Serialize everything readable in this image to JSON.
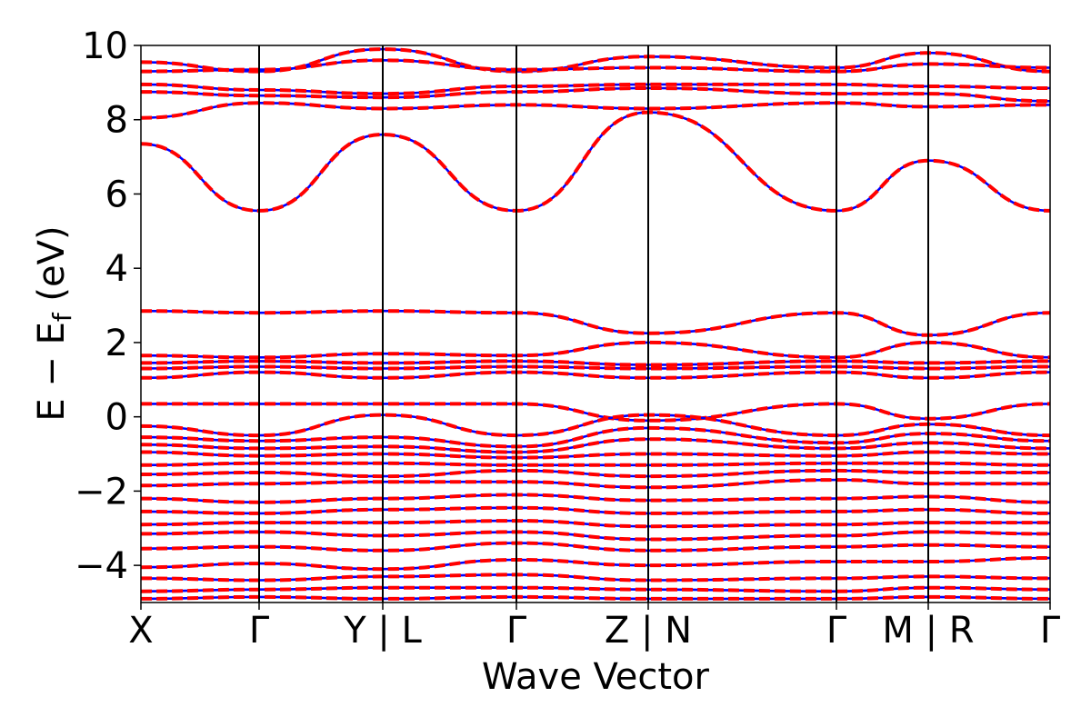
{
  "chart_data": {
    "type": "line",
    "title": "",
    "xlabel": "Wave Vector",
    "ylabel_parts": {
      "main": "E − E",
      "sub": "f",
      "unit": " (eV)"
    },
    "ylim": [
      -5,
      10
    ],
    "yticks": [
      {
        "value": -4,
        "label": "−4"
      },
      {
        "value": -2,
        "label": "−2"
      },
      {
        "value": 0,
        "label": "0"
      },
      {
        "value": 2,
        "label": "2"
      },
      {
        "value": 4,
        "label": "4"
      },
      {
        "value": 6,
        "label": "6"
      },
      {
        "value": 8,
        "label": "8"
      },
      {
        "value": 10,
        "label": "10"
      }
    ],
    "kpath": [
      {
        "label": "X",
        "pos": 0.0
      },
      {
        "label": "Γ",
        "pos": 0.13
      },
      {
        "label": "Y | L",
        "pos": 0.266
      },
      {
        "label": "Γ",
        "pos": 0.413
      },
      {
        "label": "Z | N",
        "pos": 0.558
      },
      {
        "label": "Γ",
        "pos": 0.765
      },
      {
        "label": "M | R",
        "pos": 0.866
      },
      {
        "label": "Γ",
        "pos": 1.0
      }
    ],
    "grid": false,
    "legend": "none",
    "series_styles": [
      {
        "key": "up",
        "color": "#0000ff",
        "dash": "none"
      },
      {
        "key": "down",
        "color": "#ff0000",
        "dash": "dashed"
      }
    ],
    "bands": [
      [
        [
          0,
          9.55
        ],
        [
          0.13,
          9.3
        ],
        [
          0.266,
          9.9
        ],
        [
          0.413,
          9.3
        ],
        [
          0.558,
          9.7
        ],
        [
          0.765,
          9.4
        ],
        [
          0.866,
          9.8
        ],
        [
          1,
          9.3
        ]
      ],
      [
        [
          0,
          9.3
        ],
        [
          0.13,
          9.35
        ],
        [
          0.266,
          9.6
        ],
        [
          0.413,
          9.35
        ],
        [
          0.558,
          9.4
        ],
        [
          0.765,
          9.3
        ],
        [
          0.866,
          9.5
        ],
        [
          1,
          9.4
        ]
      ],
      [
        [
          0,
          8.95
        ],
        [
          0.13,
          8.8
        ],
        [
          0.266,
          8.7
        ],
        [
          0.413,
          8.9
        ],
        [
          0.558,
          8.95
        ],
        [
          0.765,
          8.95
        ],
        [
          0.866,
          8.9
        ],
        [
          1,
          8.85
        ]
      ],
      [
        [
          0,
          8.75
        ],
        [
          0.13,
          8.65
        ],
        [
          0.266,
          8.6
        ],
        [
          0.413,
          8.75
        ],
        [
          0.558,
          8.85
        ],
        [
          0.765,
          8.7
        ],
        [
          0.866,
          8.7
        ],
        [
          1,
          8.5
        ]
      ],
      [
        [
          0,
          8.05
        ],
        [
          0.13,
          8.45
        ],
        [
          0.266,
          8.3
        ],
        [
          0.413,
          8.4
        ],
        [
          0.558,
          8.3
        ],
        [
          0.765,
          8.45
        ],
        [
          0.866,
          8.35
        ],
        [
          1,
          8.4
        ]
      ],
      [
        [
          0,
          7.35
        ],
        [
          0.13,
          5.55
        ],
        [
          0.266,
          7.6
        ],
        [
          0.413,
          5.55
        ],
        [
          0.558,
          8.2
        ],
        [
          0.765,
          5.55
        ],
        [
          0.866,
          6.9
        ],
        [
          1,
          5.55
        ]
      ],
      [
        [
          0,
          2.85
        ],
        [
          0.13,
          2.8
        ],
        [
          0.266,
          2.85
        ],
        [
          0.413,
          2.8
        ],
        [
          0.558,
          2.25
        ],
        [
          0.765,
          2.8
        ],
        [
          0.866,
          2.2
        ],
        [
          1,
          2.8
        ]
      ],
      [
        [
          0,
          1.65
        ],
        [
          0.13,
          1.6
        ],
        [
          0.266,
          1.7
        ],
        [
          0.413,
          1.65
        ],
        [
          0.558,
          2.0
        ],
        [
          0.765,
          1.6
        ],
        [
          0.866,
          2.0
        ],
        [
          1,
          1.6
        ]
      ],
      [
        [
          0,
          1.45
        ],
        [
          0.13,
          1.5
        ],
        [
          0.266,
          1.45
        ],
        [
          0.413,
          1.5
        ],
        [
          0.558,
          1.4
        ],
        [
          0.765,
          1.5
        ],
        [
          0.866,
          1.45
        ],
        [
          1,
          1.5
        ]
      ],
      [
        [
          0,
          1.3
        ],
        [
          0.13,
          1.35
        ],
        [
          0.266,
          1.3
        ],
        [
          0.413,
          1.35
        ],
        [
          0.558,
          1.3
        ],
        [
          0.765,
          1.35
        ],
        [
          0.866,
          1.3
        ],
        [
          1,
          1.35
        ]
      ],
      [
        [
          0,
          1.05
        ],
        [
          0.13,
          1.2
        ],
        [
          0.266,
          1.05
        ],
        [
          0.413,
          1.2
        ],
        [
          0.558,
          1.05
        ],
        [
          0.765,
          1.2
        ],
        [
          0.866,
          1.05
        ],
        [
          1,
          1.2
        ]
      ],
      [
        [
          0,
          0.35
        ],
        [
          0.13,
          0.35
        ],
        [
          0.266,
          0.35
        ],
        [
          0.413,
          0.35
        ],
        [
          0.558,
          -0.1
        ],
        [
          0.765,
          0.35
        ],
        [
          0.866,
          -0.05
        ],
        [
          1,
          0.35
        ]
      ],
      [
        [
          0,
          -0.25
        ],
        [
          0.13,
          -0.5
        ],
        [
          0.266,
          0.05
        ],
        [
          0.413,
          -0.5
        ],
        [
          0.558,
          0.05
        ],
        [
          0.765,
          -0.5
        ],
        [
          0.866,
          -0.2
        ],
        [
          1,
          -0.5
        ]
      ],
      [
        [
          0,
          -0.55
        ],
        [
          0.13,
          -0.65
        ],
        [
          0.266,
          -0.55
        ],
        [
          0.413,
          -0.8
        ],
        [
          0.558,
          -0.3
        ],
        [
          0.765,
          -0.7
        ],
        [
          0.866,
          -0.45
        ],
        [
          1,
          -0.65
        ]
      ],
      [
        [
          0,
          -0.75
        ],
        [
          0.13,
          -0.85
        ],
        [
          0.266,
          -0.8
        ],
        [
          0.413,
          -0.95
        ],
        [
          0.558,
          -0.6
        ],
        [
          0.765,
          -0.85
        ],
        [
          0.866,
          -0.7
        ],
        [
          1,
          -0.85
        ]
      ],
      [
        [
          0,
          -0.95
        ],
        [
          0.13,
          -1.05
        ],
        [
          0.266,
          -1.0
        ],
        [
          0.413,
          -1.1
        ],
        [
          0.558,
          -1.0
        ],
        [
          0.765,
          -1.05
        ],
        [
          0.866,
          -0.95
        ],
        [
          1,
          -1.0
        ]
      ],
      [
        [
          0,
          -1.3
        ],
        [
          0.13,
          -1.25
        ],
        [
          0.266,
          -1.25
        ],
        [
          0.413,
          -1.3
        ],
        [
          0.558,
          -1.3
        ],
        [
          0.765,
          -1.25
        ],
        [
          0.866,
          -1.25
        ],
        [
          1,
          -1.3
        ]
      ],
      [
        [
          0,
          -1.55
        ],
        [
          0.13,
          -1.5
        ],
        [
          0.266,
          -1.6
        ],
        [
          0.413,
          -1.45
        ],
        [
          0.558,
          -1.6
        ],
        [
          0.765,
          -1.45
        ],
        [
          0.866,
          -1.5
        ],
        [
          1,
          -1.5
        ]
      ],
      [
        [
          0,
          -1.85
        ],
        [
          0.13,
          -1.8
        ],
        [
          0.266,
          -1.75
        ],
        [
          0.413,
          -1.75
        ],
        [
          0.558,
          -1.9
        ],
        [
          0.765,
          -1.7
        ],
        [
          0.866,
          -1.8
        ],
        [
          1,
          -1.8
        ]
      ],
      [
        [
          0,
          -2.2
        ],
        [
          0.13,
          -2.3
        ],
        [
          0.266,
          -2.2
        ],
        [
          0.413,
          -2.1
        ],
        [
          0.558,
          -2.25
        ],
        [
          0.765,
          -2.2
        ],
        [
          0.866,
          -2.15
        ],
        [
          1,
          -2.3
        ]
      ],
      [
        [
          0,
          -2.55
        ],
        [
          0.13,
          -2.6
        ],
        [
          0.266,
          -2.5
        ],
        [
          0.413,
          -2.45
        ],
        [
          0.558,
          -2.6
        ],
        [
          0.765,
          -2.55
        ],
        [
          0.866,
          -2.5
        ],
        [
          1,
          -2.6
        ]
      ],
      [
        [
          0,
          -2.9
        ],
        [
          0.13,
          -2.85
        ],
        [
          0.266,
          -2.85
        ],
        [
          0.413,
          -2.8
        ],
        [
          0.558,
          -2.95
        ],
        [
          0.765,
          -2.9
        ],
        [
          0.866,
          -2.85
        ],
        [
          1,
          -2.85
        ]
      ],
      [
        [
          0,
          -3.15
        ],
        [
          0.13,
          -3.1
        ],
        [
          0.266,
          -3.2
        ],
        [
          0.413,
          -3.1
        ],
        [
          0.558,
          -3.3
        ],
        [
          0.765,
          -3.2
        ],
        [
          0.866,
          -3.1
        ],
        [
          1,
          -3.15
        ]
      ],
      [
        [
          0,
          -3.55
        ],
        [
          0.13,
          -3.5
        ],
        [
          0.266,
          -3.6
        ],
        [
          0.413,
          -3.4
        ],
        [
          0.558,
          -3.6
        ],
        [
          0.765,
          -3.5
        ],
        [
          0.866,
          -3.45
        ],
        [
          1,
          -3.5
        ]
      ],
      [
        [
          0,
          -4.05
        ],
        [
          0.13,
          -3.95
        ],
        [
          0.266,
          -4.1
        ],
        [
          0.413,
          -3.85
        ],
        [
          0.558,
          -4.0
        ],
        [
          0.765,
          -3.9
        ],
        [
          0.866,
          -3.9
        ],
        [
          1,
          -3.8
        ]
      ],
      [
        [
          0,
          -4.35
        ],
        [
          0.13,
          -4.4
        ],
        [
          0.266,
          -4.3
        ],
        [
          0.413,
          -4.25
        ],
        [
          0.558,
          -4.4
        ],
        [
          0.765,
          -4.35
        ],
        [
          0.866,
          -4.3
        ],
        [
          1,
          -4.35
        ]
      ],
      [
        [
          0,
          -4.7
        ],
        [
          0.13,
          -4.65
        ],
        [
          0.266,
          -4.6
        ],
        [
          0.413,
          -4.6
        ],
        [
          0.558,
          -4.65
        ],
        [
          0.765,
          -4.7
        ],
        [
          0.866,
          -4.6
        ],
        [
          1,
          -4.65
        ]
      ],
      [
        [
          0,
          -4.9
        ],
        [
          0.13,
          -4.85
        ],
        [
          0.266,
          -4.9
        ],
        [
          0.413,
          -4.85
        ],
        [
          0.558,
          -4.9
        ],
        [
          0.765,
          -4.9
        ],
        [
          0.866,
          -4.85
        ],
        [
          1,
          -4.9
        ]
      ]
    ]
  }
}
